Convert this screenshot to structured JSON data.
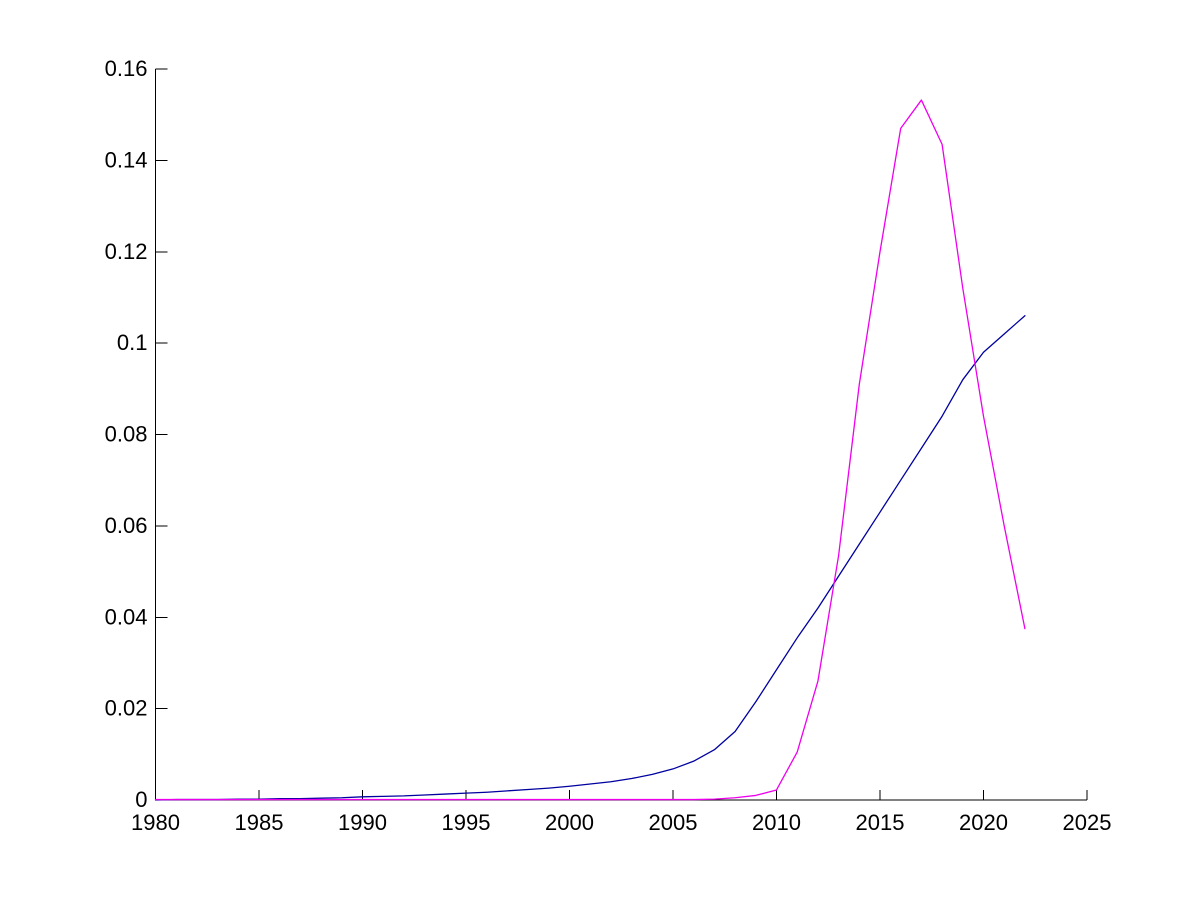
{
  "chart_data": {
    "type": "line",
    "title": "",
    "xlabel": "",
    "ylabel": "",
    "xlim": [
      1980,
      2025
    ],
    "ylim": [
      0,
      0.16
    ],
    "grid": false,
    "legend": "none",
    "background_color": "#ffffff",
    "axis_color": "#000000",
    "x_ticks": {
      "values": [
        1980,
        1985,
        1990,
        1995,
        2000,
        2005,
        2010,
        2015,
        2020,
        2025
      ],
      "labels": [
        "1980",
        "1985",
        "1990",
        "1995",
        "2000",
        "2005",
        "2010",
        "2015",
        "2020",
        "2025"
      ]
    },
    "y_ticks": {
      "values": [
        0,
        0.02,
        0.04,
        0.06,
        0.08,
        0.1,
        0.12,
        0.14,
        0.16
      ],
      "labels": [
        "0",
        "0.02",
        "0.04",
        "0.06",
        "0.08",
        "0.1",
        "0.12",
        "0.14",
        "0.16"
      ]
    },
    "x": [
      1980,
      1981,
      1982,
      1983,
      1984,
      1985,
      1986,
      1987,
      1988,
      1989,
      1990,
      1991,
      1992,
      1993,
      1994,
      1995,
      1996,
      1997,
      1998,
      1999,
      2000,
      2001,
      2002,
      2003,
      2004,
      2005,
      2006,
      2007,
      2008,
      2009,
      2010,
      2011,
      2012,
      2013,
      2014,
      2015,
      2016,
      2017,
      2018,
      2019,
      2020,
      2021,
      2022
    ],
    "series": [
      {
        "name": "blue-line",
        "color": "#0000A0",
        "values": [
          0.0,
          0.0001,
          0.0001,
          0.0001,
          0.0002,
          0.0002,
          0.0003,
          0.0003,
          0.0004,
          0.0005,
          0.0007,
          0.0008,
          0.0009,
          0.0011,
          0.0013,
          0.0015,
          0.0017,
          0.002,
          0.0023,
          0.0026,
          0.003,
          0.0035,
          0.004,
          0.0047,
          0.0056,
          0.0068,
          0.0085,
          0.011,
          0.015,
          0.0215,
          0.0285,
          0.0355,
          0.042,
          0.049,
          0.056,
          0.063,
          0.07,
          0.077,
          0.084,
          0.092,
          0.098,
          0.102,
          0.106
        ]
      },
      {
        "name": "magenta-line",
        "color": "#EE00EE",
        "values": [
          0.0001,
          0.0001,
          0.0001,
          0.0001,
          0.0001,
          0.0001,
          0.0001,
          0.0001,
          0.0001,
          0.0001,
          0.0001,
          0.0001,
          0.0001,
          0.0001,
          0.0001,
          0.0001,
          0.0001,
          0.0001,
          0.0001,
          0.0001,
          0.0001,
          0.0001,
          0.0001,
          0.0001,
          0.0001,
          0.0001,
          0.0001,
          0.0002,
          0.0005,
          0.001,
          0.0022,
          0.0105,
          0.026,
          0.0535,
          0.091,
          0.12,
          0.147,
          0.1532,
          0.1435,
          0.112,
          0.084,
          0.06,
          0.0375
        ]
      }
    ]
  }
}
